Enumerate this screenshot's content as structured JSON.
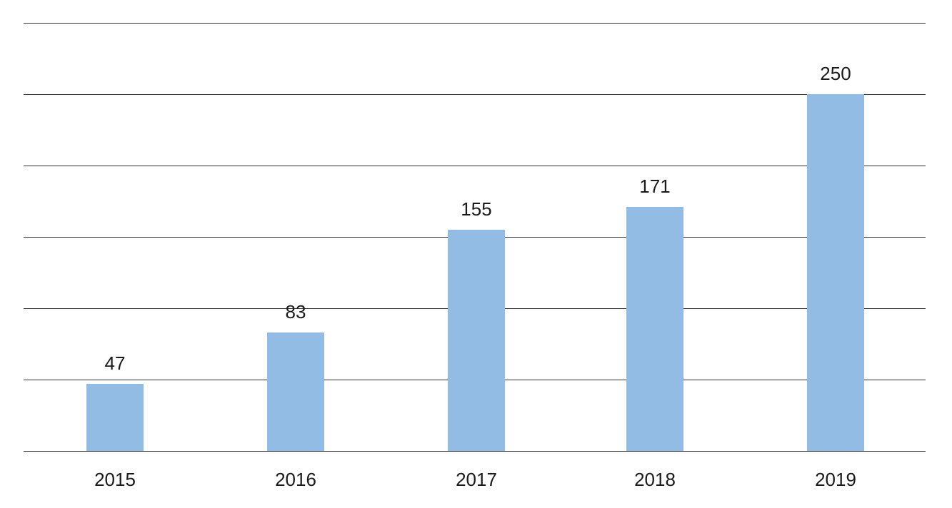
{
  "chart_data": {
    "type": "bar",
    "categories": [
      "2015",
      "2016",
      "2017",
      "2018",
      "2019"
    ],
    "values": [
      47,
      83,
      155,
      171,
      250
    ],
    "data_labels": [
      "47",
      "83",
      "155",
      "171",
      "250"
    ],
    "title": "",
    "xlabel": "",
    "ylabel": "",
    "ylim": [
      0,
      300
    ],
    "ytick_step": 50,
    "show_ytick_labels": false,
    "grid": true,
    "legend": "none",
    "colors": {
      "bar": "#92bce3",
      "gridline": "#333333",
      "text": "#1a1a1a"
    }
  }
}
